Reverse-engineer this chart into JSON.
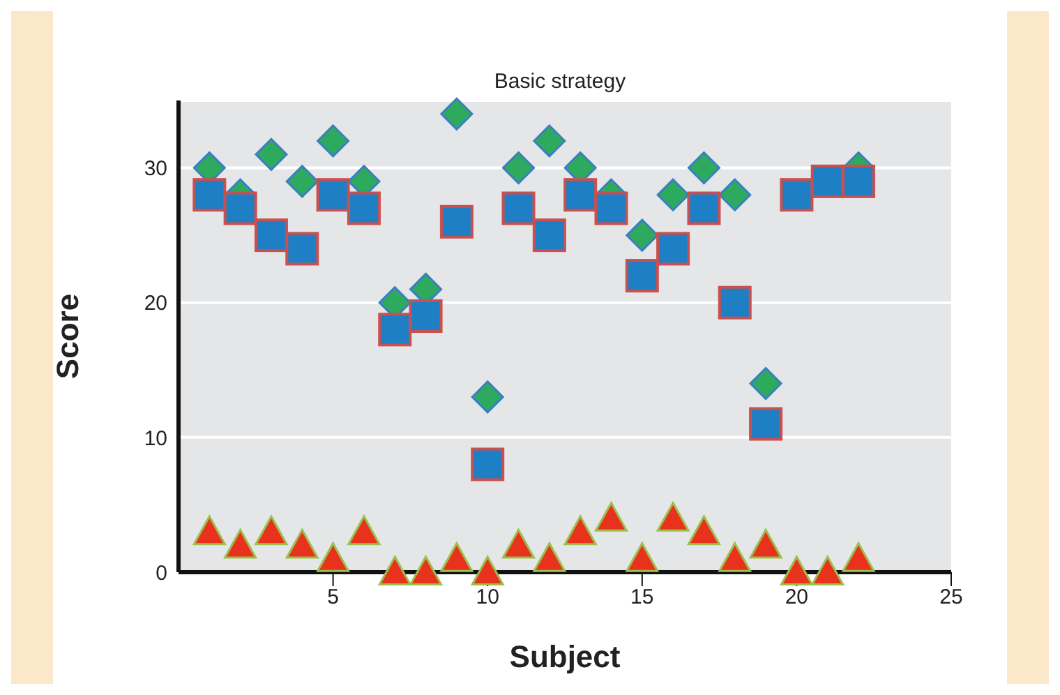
{
  "chart_data": {
    "type": "scatter",
    "title": "Basic strategy",
    "xlabel": "Subject",
    "ylabel": "Score",
    "x": [
      1,
      2,
      3,
      4,
      5,
      6,
      7,
      8,
      9,
      10,
      11,
      12,
      13,
      14,
      15,
      16,
      17,
      18,
      19,
      20,
      21,
      22
    ],
    "series": [
      {
        "color": "#2eaa5e",
        "marker": "diamond",
        "values": [
          30,
          28,
          31,
          29,
          32,
          29,
          20,
          21,
          34,
          13,
          30,
          32,
          30,
          28,
          25,
          28,
          30,
          28,
          14,
          null,
          null,
          30
        ]
      },
      {
        "color": "#1f7fc4",
        "marker": "square",
        "values": [
          28,
          27,
          25,
          24,
          28,
          27,
          18,
          19,
          26,
          8,
          27,
          25,
          28,
          27,
          22,
          24,
          27,
          20,
          11,
          28,
          29,
          29
        ]
      },
      {
        "color": "#e8321e",
        "marker": "triangle",
        "values": [
          3,
          2,
          3,
          2,
          1,
          3,
          0,
          0,
          1,
          0,
          2,
          1,
          3,
          4,
          1,
          4,
          3,
          1,
          2,
          0,
          0,
          1
        ]
      }
    ],
    "xlim": [
      0,
      25
    ],
    "xticks": [
      5,
      10,
      15,
      20,
      25
    ],
    "ylim": [
      0,
      35
    ],
    "yticks": [
      0,
      10,
      20,
      30
    ],
    "grid": "y",
    "legend": false
  }
}
